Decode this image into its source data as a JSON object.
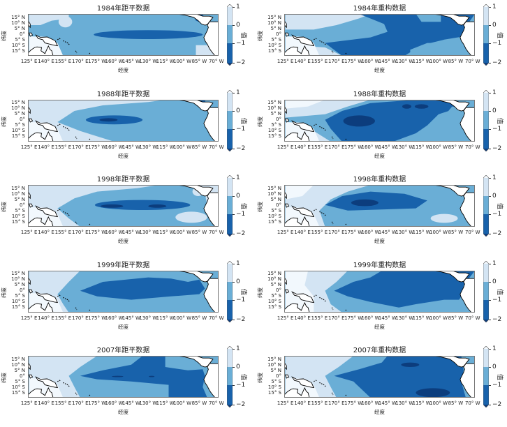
{
  "colors": {
    "above_1": "#f2f8fd",
    "0_to_1": "#d3e4f3",
    "-1_to_0": "#6aaed6",
    "-2_to_-1": "#1862ab",
    "below_-2": "#0c3d7d",
    "land": "#ffffff",
    "coast": "#000000"
  },
  "chart_data": [
    {
      "type": "contour",
      "title": "1984年距平数据",
      "xlabel": "经度",
      "ylabel": "纬度",
      "colorbar_label": "值",
      "levels": [
        "1",
        "0",
        "−1",
        "−2"
      ],
      "x_ticks": [
        "125° E",
        "140° E",
        "155° E",
        "170° E",
        "175° W",
        "160° W",
        "145° W",
        "130° W",
        "115° W",
        "100° W",
        "85° W",
        "70° W"
      ],
      "y_ticks": [
        "15° N",
        "10° N",
        "5° N",
        "0°",
        "5° S",
        "10° S",
        "15° S"
      ]
    },
    {
      "type": "contour",
      "title": "1984年重构数据",
      "xlabel": "经度",
      "ylabel": "纬度",
      "colorbar_label": "值",
      "levels": [
        "1",
        "0",
        "−1",
        "−2"
      ],
      "x_ticks": [
        "125° E",
        "140° E",
        "155° E",
        "170° E",
        "175° W",
        "160° W",
        "145° W",
        "130° W",
        "115° W",
        "100° W",
        "85° W",
        "70° W"
      ],
      "y_ticks": [
        "15° N",
        "10° N",
        "5° N",
        "0°",
        "5° S",
        "10° S",
        "15° S"
      ]
    },
    {
      "type": "contour",
      "title": "1988年距平数据",
      "xlabel": "经度",
      "ylabel": "纬度",
      "colorbar_label": "值",
      "levels": [
        "1",
        "0",
        "−1",
        "−2"
      ],
      "x_ticks": [
        "125° E",
        "140° E",
        "155° E",
        "170° E",
        "175° W",
        "160° W",
        "145° W",
        "130° W",
        "115° W",
        "100° W",
        "85° W",
        "70° W"
      ],
      "y_ticks": [
        "15° N",
        "10° N",
        "5° N",
        "0°",
        "5° S",
        "10° S",
        "15° S"
      ]
    },
    {
      "type": "contour",
      "title": "1988年重构数据",
      "xlabel": "经度",
      "ylabel": "纬度",
      "colorbar_label": "值",
      "levels": [
        "1",
        "0",
        "−1",
        "−2"
      ],
      "x_ticks": [
        "125° E",
        "140° E",
        "155° E",
        "170° E",
        "175° W",
        "160° W",
        "145° W",
        "130° W",
        "115° W",
        "100° W",
        "85° W",
        "70° W"
      ],
      "y_ticks": [
        "15° N",
        "10° N",
        "5° N",
        "0°",
        "5° S",
        "10° S",
        "15° S"
      ]
    },
    {
      "type": "contour",
      "title": "1998年距平数据",
      "xlabel": "经度",
      "ylabel": "纬度",
      "colorbar_label": "值",
      "levels": [
        "1",
        "0",
        "−1",
        "−2"
      ],
      "x_ticks": [
        "125° E",
        "140° E",
        "155° E",
        "170° E",
        "175° W",
        "160° W",
        "145° W",
        "130° W",
        "115° W",
        "100° W",
        "85° W",
        "70° W"
      ],
      "y_ticks": [
        "15° N",
        "10° N",
        "5° N",
        "0°",
        "5° S",
        "10° S",
        "15° S"
      ]
    },
    {
      "type": "contour",
      "title": "1998年重构数据",
      "xlabel": "经度",
      "ylabel": "纬度",
      "colorbar_label": "值",
      "levels": [
        "1",
        "0",
        "−1",
        "−2"
      ],
      "x_ticks": [
        "125° E",
        "140° E",
        "155° E",
        "170° E",
        "175° W",
        "160° W",
        "145° W",
        "130° W",
        "115° W",
        "100° W",
        "85° W",
        "70° W"
      ],
      "y_ticks": [
        "15° N",
        "10° N",
        "5° N",
        "0°",
        "5° S",
        "10° S",
        "15° S"
      ]
    },
    {
      "type": "contour",
      "title": "1999年距平数据",
      "xlabel": "经度",
      "ylabel": "纬度",
      "colorbar_label": "值",
      "levels": [
        "1",
        "0",
        "−1",
        "−2"
      ],
      "x_ticks": [
        "125° E",
        "140° E",
        "155° E",
        "170° E",
        "175° W",
        "160° W",
        "145° W",
        "130° W",
        "115° W",
        "100° W",
        "85° W",
        "70° W"
      ],
      "y_ticks": [
        "15° N",
        "10° N",
        "5° N",
        "0°",
        "5° S",
        "10° S",
        "15° S"
      ]
    },
    {
      "type": "contour",
      "title": "1999年重构数据",
      "xlabel": "经度",
      "ylabel": "纬度",
      "colorbar_label": "值",
      "levels": [
        "1",
        "0",
        "−1",
        "−2"
      ],
      "x_ticks": [
        "125° E",
        "140° E",
        "155° E",
        "170° E",
        "175° W",
        "160° W",
        "145° W",
        "130° W",
        "115° W",
        "100° W",
        "85° W",
        "70° W"
      ],
      "y_ticks": [
        "15° N",
        "10° N",
        "5° N",
        "0°",
        "5° S",
        "10° S",
        "15° S"
      ]
    },
    {
      "type": "contour",
      "title": "2007年距平数据",
      "xlabel": "经度",
      "ylabel": "纬度",
      "colorbar_label": "值",
      "levels": [
        "1",
        "0",
        "−1",
        "−2"
      ],
      "x_ticks": [
        "125° E",
        "140° E",
        "155° E",
        "170° E",
        "175° W",
        "160° W",
        "145° W",
        "130° W",
        "115° W",
        "100° W",
        "85° W",
        "70° W"
      ],
      "y_ticks": [
        "15° N",
        "10° N",
        "5° N",
        "0°",
        "5° S",
        "10° S",
        "15° S"
      ]
    },
    {
      "type": "contour",
      "title": "2007年重构数据",
      "xlabel": "经度",
      "ylabel": "纬度",
      "colorbar_label": "值",
      "levels": [
        "1",
        "0",
        "−1",
        "−2"
      ],
      "x_ticks": [
        "125° E",
        "140° E",
        "155° E",
        "170° E",
        "175° W",
        "160° W",
        "145° W",
        "130° W",
        "115° W",
        "100° W",
        "85° W",
        "70° W"
      ],
      "y_ticks": [
        "15° N",
        "10° N",
        "5° N",
        "0°",
        "5° S",
        "10° S",
        "15° S"
      ]
    }
  ]
}
